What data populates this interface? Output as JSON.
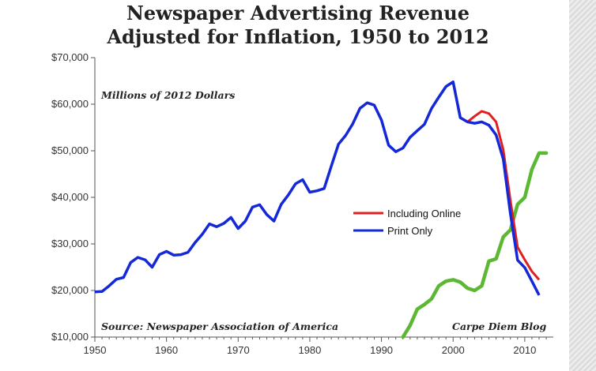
{
  "title_line1": "Newspaper Advertising Revenue",
  "title_line2": "Adjusted for Inflation, 1950 to 2012",
  "units_note": "Millions of 2012 Dollars",
  "source_note": "Source: Newspaper Association of America",
  "credit_note": "Carpe Diem Blog",
  "colors": {
    "print": "#1428d8",
    "online": "#e02020",
    "green": "#5cb833"
  },
  "chart_data": {
    "type": "line",
    "title": "Newspaper Advertising Revenue Adjusted for Inflation, 1950 to 2012",
    "xlabel": "",
    "ylabel": "",
    "xlim": [
      1950,
      2013
    ],
    "ylim": [
      10000,
      70000
    ],
    "x_ticks": [
      1950,
      1960,
      1970,
      1980,
      1990,
      2000,
      2010
    ],
    "y_ticks": [
      10000,
      20000,
      30000,
      40000,
      50000,
      60000,
      70000
    ],
    "y_tick_labels": [
      "$10,000",
      "$20,000",
      "$30,000",
      "$40,000",
      "$50,000",
      "$60,000",
      "$70,000"
    ],
    "x_tick_labels": [
      "1950",
      "1960",
      "1970",
      "1980",
      "1990",
      "2000",
      "2010"
    ],
    "grid": false,
    "legend_position": "center-right",
    "series": [
      {
        "name": "Print Only",
        "color": "#1428d8",
        "x": [
          1950,
          1951,
          1952,
          1953,
          1954,
          1955,
          1956,
          1957,
          1958,
          1959,
          1960,
          1961,
          1962,
          1963,
          1964,
          1965,
          1966,
          1967,
          1968,
          1969,
          1970,
          1971,
          1972,
          1973,
          1974,
          1975,
          1976,
          1977,
          1978,
          1979,
          1980,
          1981,
          1982,
          1983,
          1984,
          1985,
          1986,
          1987,
          1988,
          1989,
          1990,
          1991,
          1992,
          1993,
          1994,
          1995,
          1996,
          1997,
          1998,
          1999,
          2000,
          2001,
          2002,
          2003,
          2004,
          2005,
          2006,
          2007,
          2008,
          2009,
          2010,
          2011,
          2012
        ],
        "values": [
          19700,
          19800,
          21000,
          22400,
          22800,
          26000,
          27100,
          26600,
          25000,
          27700,
          28400,
          27600,
          27700,
          28200,
          30300,
          32100,
          34300,
          33700,
          34400,
          35700,
          33300,
          34900,
          37900,
          38400,
          36300,
          34900,
          38500,
          40500,
          42900,
          43800,
          41100,
          41400,
          41900,
          46700,
          51400,
          53300,
          55800,
          59100,
          60300,
          59800,
          56600,
          51200,
          49800,
          50600,
          52900,
          54300,
          55700,
          59100,
          61500,
          63800,
          64800,
          57100,
          56200,
          55900,
          56200,
          55500,
          53400,
          48200,
          36500,
          26500,
          24900,
          22000,
          19000
        ]
      },
      {
        "name": "Including Online",
        "color": "#e02020",
        "x": [
          2000,
          2001,
          2002,
          2003,
          2004,
          2005,
          2006,
          2007,
          2008,
          2009,
          2010,
          2011,
          2012
        ],
        "values": [
          64800,
          57100,
          56200,
          57400,
          58500,
          58000,
          56200,
          50200,
          39300,
          29300,
          26600,
          24100,
          22300
        ]
      }
    ],
    "unlabeled_green_curve": {
      "color": "#5cb833",
      "x": [
        1993,
        1994,
        1995,
        1996,
        1997,
        1998,
        1999,
        2000,
        2001,
        2002,
        2003,
        2004,
        2005,
        2006,
        2007,
        2008,
        2009,
        2010,
        2011,
        2012,
        2013
      ],
      "values": [
        10000,
        12500,
        16000,
        17000,
        18200,
        21000,
        22000,
        22300,
        21800,
        20500,
        20000,
        21000,
        26300,
        26800,
        31500,
        33000,
        38500,
        40000,
        46000,
        49500,
        49500
      ]
    }
  }
}
